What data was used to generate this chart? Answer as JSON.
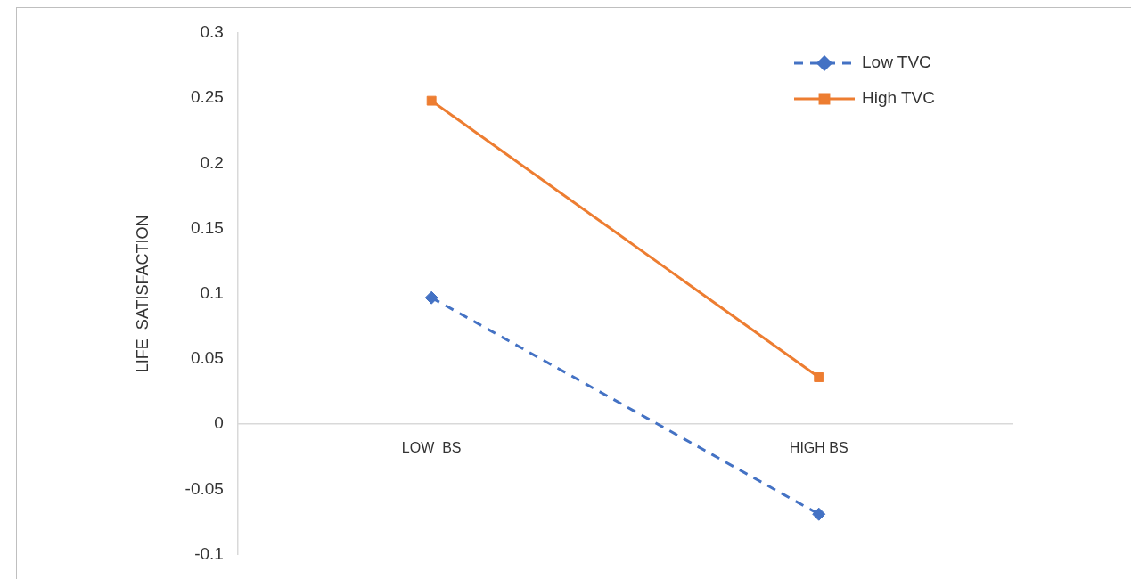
{
  "chart_data": {
    "type": "line",
    "ylabel": "LIFE  SATISFACTION",
    "categories": [
      "LOW  BS",
      "HIGH BS"
    ],
    "series": [
      {
        "name": "Low TVC",
        "color": "#4472c4",
        "values": [
          0.097,
          -0.069
        ],
        "marker": "diamond",
        "line_style": "dashed"
      },
      {
        "name": "High TVC",
        "color": "#ed7d31",
        "values": [
          0.248,
          0.036
        ],
        "marker": "square",
        "line_style": "solid"
      }
    ],
    "ylim": [
      -0.1,
      0.3
    ],
    "yticks": [
      -0.1,
      -0.05,
      0,
      0.05,
      0.1,
      0.15,
      0.2,
      0.25,
      0.3
    ],
    "grid": false,
    "legend": "top right"
  }
}
